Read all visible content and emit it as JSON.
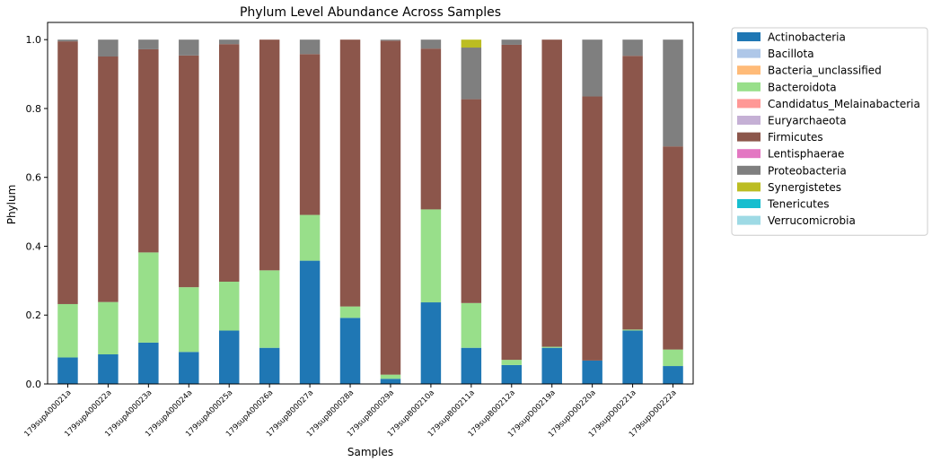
{
  "chart_data": {
    "type": "bar",
    "stacked": true,
    "title": "Phylum Level Abundance Across Samples",
    "xlabel": "Samples",
    "ylabel": "Phylum",
    "ylim": [
      0,
      1.05
    ],
    "yticks": [
      "0.0",
      "0.2",
      "0.4",
      "0.6",
      "0.8",
      "1.0"
    ],
    "legend_position": "outside-right",
    "categories": [
      "179supA00021a",
      "179supA00022a",
      "179supA00023a",
      "179supA00024a",
      "179supA00025a",
      "179supA00026a",
      "179supB00027a",
      "179supB00028a",
      "179supB00029a",
      "179supB00210a",
      "179supB00211a",
      "179supB00212a",
      "179supD00219a",
      "179supD00220a",
      "179supD00221a",
      "179supD00222a"
    ],
    "series": [
      {
        "name": "Actinobacteria",
        "color": "#1f77b4",
        "values": [
          0.077,
          0.086,
          0.12,
          0.093,
          0.155,
          0.105,
          0.358,
          0.192,
          0.015,
          0.237,
          0.105,
          0.055,
          0.105,
          0.068,
          0.155,
          0.052
        ]
      },
      {
        "name": "Bacillota",
        "color": "#aec7e8",
        "values": [
          0,
          0,
          0,
          0,
          0,
          0,
          0,
          0,
          0,
          0,
          0,
          0,
          0,
          0,
          0,
          0
        ]
      },
      {
        "name": "Bacteria_unclassified",
        "color": "#ffbb78",
        "values": [
          0,
          0,
          0,
          0,
          0,
          0,
          0,
          0,
          0,
          0,
          0,
          0,
          0,
          0,
          0,
          0
        ]
      },
      {
        "name": "Bacteroidota",
        "color": "#98df8a",
        "values": [
          0.155,
          0.152,
          0.262,
          0.188,
          0.142,
          0.225,
          0.133,
          0.033,
          0.012,
          0.27,
          0.13,
          0.015,
          0.003,
          0,
          0.003,
          0.048
        ]
      },
      {
        "name": "Candidatus_Melainabacteria",
        "color": "#ff9896",
        "values": [
          0,
          0,
          0,
          0,
          0,
          0,
          0,
          0,
          0,
          0,
          0,
          0,
          0,
          0,
          0,
          0
        ]
      },
      {
        "name": "Euryarchaeota",
        "color": "#c5b0d5",
        "values": [
          0,
          0,
          0,
          0,
          0,
          0,
          0,
          0,
          0,
          0,
          0,
          0,
          0,
          0,
          0,
          0
        ]
      },
      {
        "name": "Firmicutes",
        "color": "#8c564b",
        "values": [
          0.763,
          0.713,
          0.59,
          0.673,
          0.69,
          0.67,
          0.467,
          0.775,
          0.97,
          0.467,
          0.592,
          0.915,
          0.892,
          0.767,
          0.795,
          0.59
        ]
      },
      {
        "name": "Lentisphaerae",
        "color": "#e377c2",
        "values": [
          0,
          0,
          0,
          0,
          0,
          0,
          0,
          0,
          0,
          0,
          0,
          0,
          0,
          0,
          0,
          0
        ]
      },
      {
        "name": "Proteobacteria",
        "color": "#7f7f7f",
        "values": [
          0.005,
          0.049,
          0.028,
          0.046,
          0.013,
          0,
          0.042,
          0,
          0.003,
          0.026,
          0.15,
          0.015,
          0,
          0.165,
          0.047,
          0.31
        ]
      },
      {
        "name": "Synergistetes",
        "color": "#bcbd22",
        "values": [
          0,
          0,
          0,
          0,
          0,
          0,
          0,
          0,
          0,
          0,
          0.023,
          0,
          0,
          0,
          0,
          0
        ]
      },
      {
        "name": "Tenericutes",
        "color": "#17becf",
        "values": [
          0,
          0,
          0,
          0,
          0,
          0,
          0,
          0,
          0,
          0,
          0,
          0,
          0,
          0,
          0,
          0
        ]
      },
      {
        "name": "Verrucomicrobia",
        "color": "#9edae5",
        "values": [
          0,
          0,
          0,
          0,
          0,
          0,
          0,
          0,
          0,
          0,
          0,
          0,
          0,
          0,
          0,
          0
        ]
      }
    ]
  }
}
